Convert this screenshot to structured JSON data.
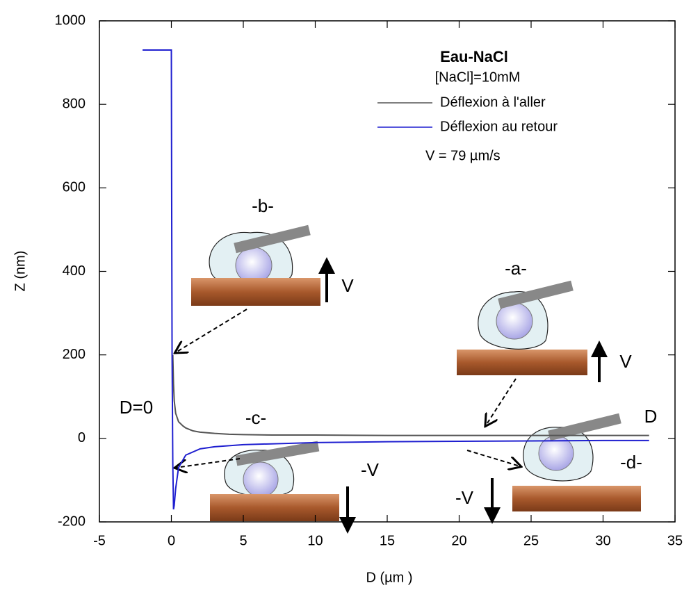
{
  "chart_data": {
    "type": "line",
    "title": "Eau-NaCl",
    "subtitle": "[NaCl]=10mM",
    "speed_note": "V = 79 µm/s",
    "x_label": "D (µm )",
    "y_label": "Z (nm)",
    "annotations": [
      "-a-",
      "-b-",
      "-c-",
      "-d-",
      "D=0",
      "D",
      "V",
      "V",
      "-V",
      "-V"
    ],
    "xlim": [
      -5,
      35
    ],
    "xticks": [
      -5,
      0,
      5,
      10,
      15,
      20,
      25,
      30,
      35
    ],
    "ylim": [
      -200,
      1000
    ],
    "yticks": [
      -200,
      0,
      200,
      400,
      600,
      800,
      1000
    ],
    "series": [
      {
        "name": "Déflexion à l'aller",
        "color": "#555555",
        "x": [
          0.1,
          0.15,
          0.2,
          0.3,
          0.5,
          0.8,
          1,
          1.5,
          2,
          3,
          4,
          5,
          7,
          10,
          15,
          20,
          25,
          30,
          33.2
        ],
        "values": [
          200,
          130,
          90,
          60,
          40,
          30,
          25,
          18,
          15,
          12,
          10,
          9,
          8,
          8,
          7,
          7,
          7,
          7,
          7
        ]
      },
      {
        "name": "Déflexion au retour",
        "color": "#1f1fd0",
        "x": [
          -2,
          -1,
          0,
          0.02,
          0.05,
          0.1,
          0.15,
          0.2,
          0.3,
          0.5,
          1,
          2,
          3,
          5,
          10,
          15,
          20,
          25,
          30,
          33.2
        ],
        "values": [
          930,
          930,
          930,
          600,
          200,
          -60,
          -170,
          -160,
          -120,
          -70,
          -40,
          -25,
          -20,
          -15,
          -10,
          -8,
          -7,
          -6,
          -5,
          -5
        ]
      }
    ]
  }
}
